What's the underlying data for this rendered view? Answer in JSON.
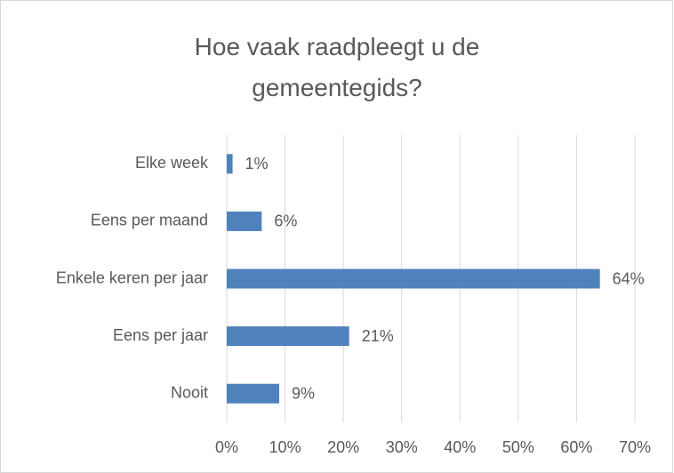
{
  "chart_data": {
    "type": "bar",
    "orientation": "horizontal",
    "title": "Hoe vaak raadpleegt u de gemeentegids?",
    "categories": [
      "Elke week",
      "Eens per maand",
      "Enkele keren per jaar",
      "Eens per jaar",
      "Nooit"
    ],
    "values": [
      1,
      6,
      64,
      21,
      9
    ],
    "value_labels": [
      "1%",
      "6%",
      "64%",
      "21%",
      "9%"
    ],
    "color": "#4f81bd",
    "xlim": [
      0,
      70
    ],
    "xticks": [
      {
        "value": 0,
        "label": "0%"
      },
      {
        "value": 10,
        "label": "10%"
      },
      {
        "value": 20,
        "label": "20%"
      },
      {
        "value": 30,
        "label": "30%"
      },
      {
        "value": 40,
        "label": "40%"
      },
      {
        "value": 50,
        "label": "50%"
      },
      {
        "value": 60,
        "label": "60%"
      },
      {
        "value": 70,
        "label": "70%"
      }
    ],
    "grid": true
  }
}
